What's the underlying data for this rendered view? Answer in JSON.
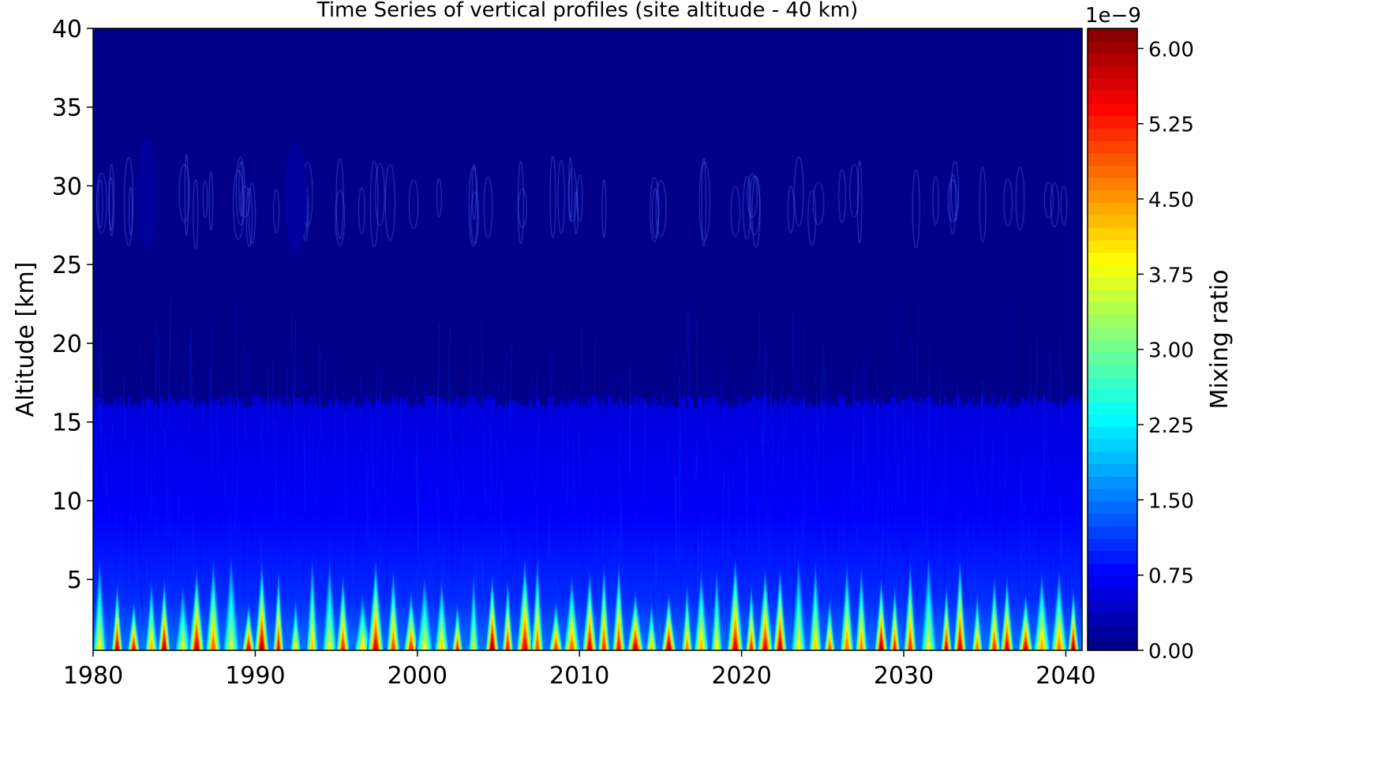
{
  "chart_data": {
    "type": "heatmap",
    "title": "Time Series of vertical profiles (site altitude - 40 km)",
    "xlabel": "",
    "ylabel": "Altitude [km]",
    "xlim": [
      1980,
      2041
    ],
    "ylim": [
      0.5,
      40
    ],
    "x_ticks": [
      1980,
      1990,
      2000,
      2010,
      2020,
      2030,
      2040
    ],
    "x_tick_labels": [
      "1980",
      "1990",
      "2000",
      "2010",
      "2020",
      "2030",
      "2040"
    ],
    "y_ticks": [
      5,
      10,
      15,
      20,
      25,
      30,
      35,
      40
    ],
    "y_tick_labels": [
      "5",
      "10",
      "15",
      "20",
      "25",
      "30",
      "35",
      "40"
    ],
    "colormap": "jet",
    "colorbar": {
      "label": "Mixing ratio",
      "offset_text": "1e−9",
      "range": [
        0,
        6.2
      ],
      "ticks": [
        0,
        0.75,
        1.5,
        2.25,
        3.0,
        3.75,
        4.5,
        5.25,
        6.0
      ],
      "tick_labels": [
        "0.00",
        "0.75",
        "1.50",
        "2.25",
        "3.00",
        "3.75",
        "4.50",
        "5.25",
        "6.00"
      ],
      "levels": 50
    },
    "features": {
      "background_value": 0.05,
      "tropopause_altitude_km": 16.3,
      "seasonal_cycle_period_years": 1,
      "peak_surface_value": 6.0,
      "upper_patches_altitude_km": [
        26,
        32
      ]
    }
  }
}
